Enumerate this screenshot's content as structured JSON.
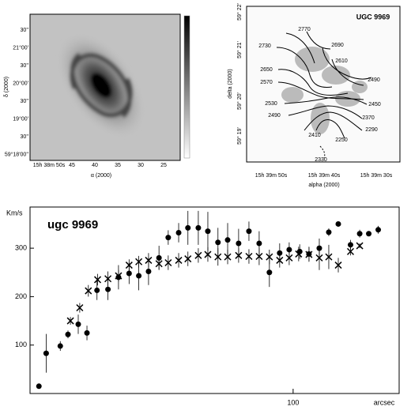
{
  "image_panel": {
    "yticks": [
      "30''",
      "21°00'",
      "30''",
      "20°00'",
      "30''",
      "19°00'",
      "30''",
      "59°18'00''"
    ],
    "xticks": [
      "15h 38m 50s",
      "45",
      "40",
      "35",
      "30",
      "25"
    ],
    "xlabel": "α (2000)",
    "ylabel": "δ (2000)"
  },
  "velocity_map": {
    "title": "UGC 9969",
    "yticks": [
      "59° 22'",
      "59° 21'",
      "59° 20'",
      "59° 19'"
    ],
    "xticks": [
      "15h 39m 50s",
      "15h 39m 40s",
      "15h 39m 30s"
    ],
    "xlabel": "alpha (2000)",
    "ylabel": "delta (2000)",
    "contour_labels": [
      "2770",
      "2730",
      "2690",
      "2650",
      "2610",
      "2570",
      "2490",
      "2530",
      "2450",
      "2490",
      "2370",
      "2410",
      "2290",
      "2250",
      "2330"
    ]
  },
  "chart_data": {
    "type": "scatter",
    "title": "ugc 9969",
    "ylabel": "Km/s",
    "xlabel": "arcsec",
    "xscale": "log",
    "xlim": [
      9.8,
      255
    ],
    "xticks": [
      100
    ],
    "ylim": [
      0,
      385
    ],
    "yticks": [
      100,
      200,
      300
    ],
    "series": [
      {
        "marker": "circle",
        "color": "#000000",
        "x": [
          10.6,
          11.3,
          12.8,
          13.7,
          15.0,
          16.2,
          17.7,
          19.5,
          21.4,
          23.5,
          25.6,
          27.9,
          30.6,
          33.2,
          36.4,
          39.5,
          43.3,
          47.1,
          51.5,
          56.1,
          61.8,
          67.7,
          74.1,
          81.1,
          88.8,
          96.6,
          106,
          115,
          126,
          137,
          149,
          166,
          180,
          195,
          212
        ],
        "values": [
          15,
          83,
          98,
          122,
          143,
          125,
          213,
          215,
          240,
          248,
          243,
          252,
          280,
          322,
          332,
          342,
          342,
          335,
          312,
          317,
          310,
          335,
          310,
          250,
          290,
          297,
          293,
          288,
          300,
          333,
          350,
          307,
          330,
          330,
          338
        ],
        "errors": [
          5,
          40,
          10,
          8,
          20,
          15,
          20,
          22,
          25,
          22,
          30,
          28,
          25,
          15,
          20,
          35,
          35,
          40,
          30,
          35,
          30,
          20,
          25,
          30,
          20,
          15,
          15,
          15,
          20,
          8,
          5,
          10,
          8,
          5,
          8
        ]
      },
      {
        "marker": "cross",
        "color": "#000000",
        "x": [
          14.0,
          15.2,
          16.4,
          17.8,
          19.5,
          21.4,
          23.5,
          25.6,
          27.9,
          30.6,
          33.2,
          36.4,
          39.5,
          43.3,
          47.1,
          51.5,
          56.1,
          61.8,
          67.7,
          74.1,
          81.1,
          88.8,
          96.6,
          105,
          115,
          126,
          137,
          149,
          166,
          180
        ],
        "values": [
          150,
          177,
          212,
          235,
          237,
          243,
          265,
          272,
          275,
          268,
          270,
          275,
          278,
          285,
          287,
          282,
          282,
          285,
          283,
          283,
          282,
          275,
          280,
          288,
          287,
          280,
          282,
          265,
          293,
          305
        ],
        "errors": [
          8,
          10,
          12,
          12,
          15,
          12,
          12,
          12,
          15,
          12,
          15,
          15,
          15,
          15,
          15,
          18,
          15,
          15,
          15,
          18,
          15,
          15,
          15,
          15,
          15,
          25,
          25,
          15,
          8,
          5
        ]
      }
    ]
  }
}
